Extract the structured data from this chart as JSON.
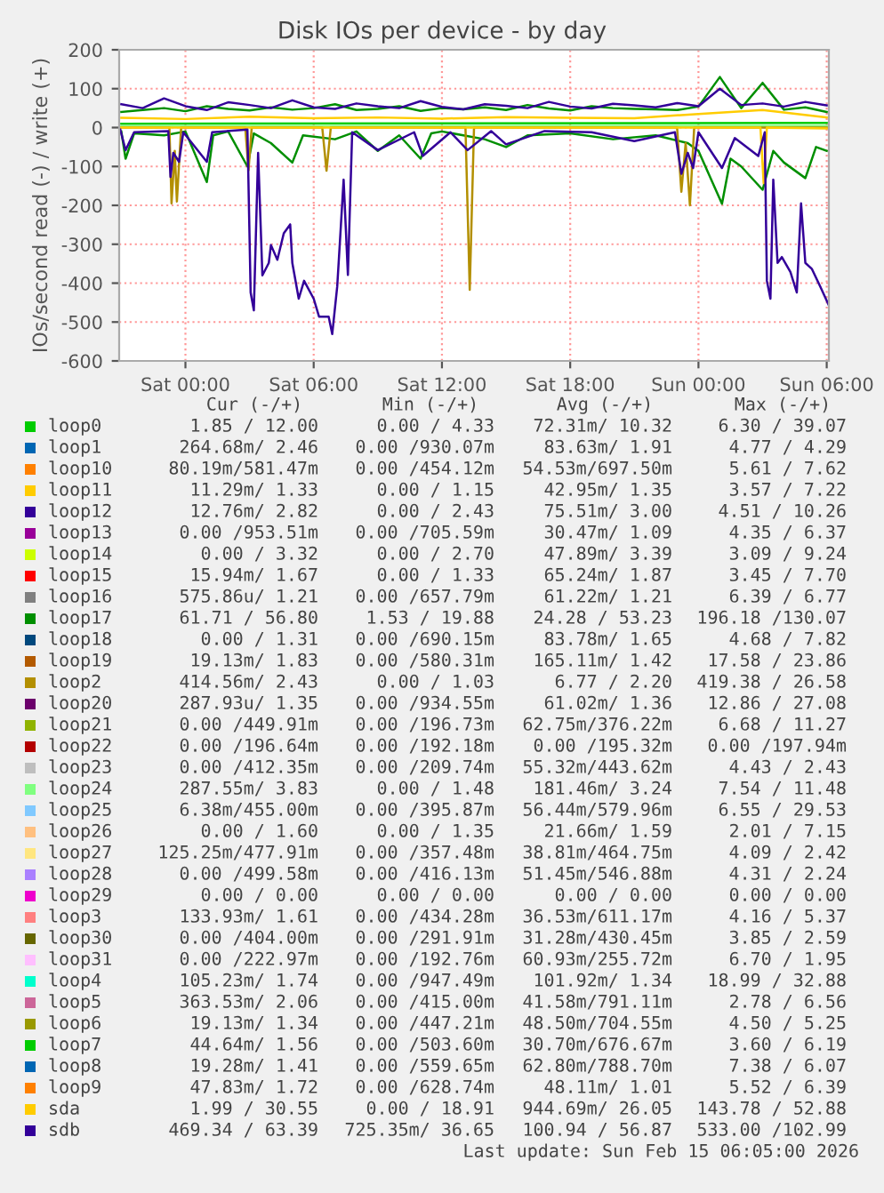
{
  "chart_data": {
    "type": "line",
    "title": "Disk IOs per device - by day",
    "ylabel": "IOs/second read (-) / write (+)",
    "xlim": [
      "2026-02-13T20:54",
      "2026-02-15T06:06"
    ],
    "xticks": [
      {
        "value": "2026-02-14T00:00",
        "label": "Sat 00:00"
      },
      {
        "value": "2026-02-14T06:00",
        "label": "Sat 06:00"
      },
      {
        "value": "2026-02-14T12:00",
        "label": "Sat 12:00"
      },
      {
        "value": "2026-02-14T18:00",
        "label": "Sat 18:00"
      },
      {
        "value": "2026-02-15T00:00",
        "label": "Sun 00:00"
      },
      {
        "value": "2026-02-15T06:00",
        "label": "Sun 06:00"
      }
    ],
    "ylim": [
      -600,
      200
    ],
    "yticks": [
      -600,
      -500,
      -400,
      -300,
      -200,
      -100,
      0,
      100,
      200
    ],
    "grid": true,
    "legend": "bottom",
    "series": [
      {
        "name": "loop0",
        "color": "#00cc00",
        "x": [
          "2026-02-13T21:00",
          "2026-02-15T06:00"
        ],
        "values": [
          10,
          12
        ]
      },
      {
        "name": "loop1",
        "color": "#0066b3"
      },
      {
        "name": "loop10",
        "color": "#ff8000"
      },
      {
        "name": "loop11",
        "color": "#ffcc00"
      },
      {
        "name": "loop12",
        "color": "#330099"
      },
      {
        "name": "loop13",
        "color": "#990099"
      },
      {
        "name": "loop14",
        "color": "#ccff00"
      },
      {
        "name": "loop15",
        "color": "#ff0000"
      },
      {
        "name": "loop16",
        "color": "#808080"
      },
      {
        "name": "loop17",
        "color": "#008f00",
        "x": [
          "2026-02-13T21:00",
          "2026-02-13T22:00",
          "2026-02-13T23:00",
          "2026-02-14T00:00",
          "2026-02-14T01:00",
          "2026-02-14T02:00",
          "2026-02-14T03:00",
          "2026-02-14T04:00",
          "2026-02-14T05:00",
          "2026-02-14T06:00",
          "2026-02-14T07:00",
          "2026-02-14T08:00",
          "2026-02-14T09:00",
          "2026-02-14T10:00",
          "2026-02-14T11:00",
          "2026-02-14T12:00",
          "2026-02-14T13:00",
          "2026-02-14T14:00",
          "2026-02-14T15:00",
          "2026-02-14T16:00",
          "2026-02-14T17:00",
          "2026-02-14T18:00",
          "2026-02-14T19:00",
          "2026-02-14T20:00",
          "2026-02-14T21:00",
          "2026-02-14T22:00",
          "2026-02-14T23:00",
          "2026-02-15T00:00",
          "2026-02-15T01:00",
          "2026-02-15T02:00",
          "2026-02-15T03:00",
          "2026-02-15T04:00",
          "2026-02-15T05:00",
          "2026-02-15T06:00"
        ],
        "values": [
          40,
          45,
          50,
          42,
          55,
          48,
          44,
          52,
          46,
          50,
          60,
          45,
          48,
          55,
          43,
          50,
          47,
          52,
          45,
          58,
          49,
          44,
          55,
          50,
          48,
          47,
          45,
          54,
          130,
          50,
          115,
          46,
          52,
          40
        ]
      },
      {
        "name": "loop18",
        "color": "#00487d"
      },
      {
        "name": "loop19",
        "color": "#b35a00"
      },
      {
        "name": "loop2",
        "color": "#b38f00"
      },
      {
        "name": "loop20",
        "color": "#6b006b"
      },
      {
        "name": "loop21",
        "color": "#8fb300"
      },
      {
        "name": "loop22",
        "color": "#b30000"
      },
      {
        "name": "loop23",
        "color": "#bebebe"
      },
      {
        "name": "loop24",
        "color": "#80ff80",
        "x": [
          "2026-02-13T21:00",
          "2026-02-15T06:00"
        ],
        "values": [
          3,
          4
        ]
      },
      {
        "name": "loop25",
        "color": "#80c9ff"
      },
      {
        "name": "loop26",
        "color": "#ffc080"
      },
      {
        "name": "loop27",
        "color": "#ffe680"
      },
      {
        "name": "loop28",
        "color": "#aa80ff"
      },
      {
        "name": "loop29",
        "color": "#ee00cc"
      },
      {
        "name": "loop3",
        "color": "#ff8080"
      },
      {
        "name": "loop30",
        "color": "#666600"
      },
      {
        "name": "loop31",
        "color": "#ffbfff"
      },
      {
        "name": "loop4",
        "color": "#00ffcc"
      },
      {
        "name": "loop5",
        "color": "#cc6699"
      },
      {
        "name": "loop6",
        "color": "#999900"
      },
      {
        "name": "loop7",
        "color": "#00cc00"
      },
      {
        "name": "loop8",
        "color": "#0066b3"
      },
      {
        "name": "loop9",
        "color": "#ff8000"
      },
      {
        "name": "sda",
        "color": "#ffcc00",
        "x": [
          "2026-02-13T21:00",
          "2026-02-14T00:00",
          "2026-02-14T03:00",
          "2026-02-14T06:00",
          "2026-02-14T09:00",
          "2026-02-14T12:00",
          "2026-02-14T15:00",
          "2026-02-14T18:00",
          "2026-02-14T21:00",
          "2026-02-15T00:00",
          "2026-02-15T03:00",
          "2026-02-15T06:00"
        ],
        "values": [
          25,
          22,
          28,
          24,
          26,
          23,
          27,
          25,
          24,
          35,
          45,
          26
        ]
      },
      {
        "name": "sdb",
        "color": "#330099",
        "x": [
          "2026-02-13T21:00",
          "2026-02-13T22:00",
          "2026-02-13T23:00",
          "2026-02-14T00:00",
          "2026-02-14T01:00",
          "2026-02-14T02:00",
          "2026-02-14T03:00",
          "2026-02-14T04:00",
          "2026-02-14T05:00",
          "2026-02-14T06:00",
          "2026-02-14T07:00",
          "2026-02-14T08:00",
          "2026-02-14T09:00",
          "2026-02-14T10:00",
          "2026-02-14T11:00",
          "2026-02-14T12:00",
          "2026-02-14T13:00",
          "2026-02-14T14:00",
          "2026-02-14T15:00",
          "2026-02-14T16:00",
          "2026-02-14T17:00",
          "2026-02-14T18:00",
          "2026-02-14T19:00",
          "2026-02-14T20:00",
          "2026-02-14T21:00",
          "2026-02-14T22:00",
          "2026-02-14T23:00",
          "2026-02-15T00:00",
          "2026-02-15T01:00",
          "2026-02-15T02:00",
          "2026-02-15T03:00",
          "2026-02-15T04:00",
          "2026-02-15T05:00",
          "2026-02-15T06:00"
        ],
        "values": [
          60,
          50,
          75,
          55,
          45,
          65,
          58,
          50,
          70,
          52,
          48,
          62,
          55,
          50,
          68,
          53,
          47,
          60,
          56,
          50,
          66,
          54,
          49,
          61,
          57,
          52,
          63,
          55,
          100,
          58,
          62,
          54,
          66,
          57
        ]
      },
      {
        "color": "#008f00",
        "x": [
          "2026-02-13T21:00",
          "2026-02-13T21:12",
          "2026-02-13T21:36",
          "2026-02-13T23:00",
          "2026-02-14T00:00",
          "2026-02-14T01:00",
          "2026-02-14T01:18",
          "2026-02-14T02:00",
          "2026-02-14T02:54",
          "2026-02-14T03:12",
          "2026-02-14T04:00",
          "2026-02-14T05:00",
          "2026-02-14T05:30",
          "2026-02-14T07:00",
          "2026-02-14T08:00",
          "2026-02-14T09:00",
          "2026-02-14T10:00",
          "2026-02-14T11:00",
          "2026-02-14T11:30",
          "2026-02-14T12:00",
          "2026-02-14T14:00",
          "2026-02-14T15:00",
          "2026-02-14T16:00",
          "2026-02-14T18:00",
          "2026-02-14T20:00",
          "2026-02-14T22:00",
          "2026-02-14T23:30",
          "2026-02-15T00:00",
          "2026-02-15T01:06",
          "2026-02-15T01:30",
          "2026-02-15T02:00",
          "2026-02-15T03:00",
          "2026-02-15T03:30",
          "2026-02-15T04:00",
          "2026-02-15T05:00",
          "2026-02-15T05:30",
          "2026-02-15T06:00"
        ],
        "values": [
          -10,
          -80,
          -15,
          -20,
          -10,
          -140,
          -20,
          -10,
          -100,
          -15,
          -40,
          -90,
          -20,
          -30,
          -10,
          -60,
          -20,
          -80,
          -15,
          -10,
          -30,
          -50,
          -20,
          -15,
          -30,
          -20,
          -40,
          -60,
          -196,
          -80,
          -100,
          -160,
          -60,
          -90,
          -130,
          -50,
          -60
        ]
      },
      {
        "color": "#b38f00",
        "x": [
          "2026-02-13T21:00",
          "2026-02-13T23:15",
          "2026-02-13T23:21",
          "2026-02-13T23:30",
          "2026-02-13T23:36",
          "2026-02-13T23:48",
          "2026-02-14T02:48",
          "2026-02-14T02:57",
          "2026-02-14T03:06",
          "2026-02-14T06:24",
          "2026-02-14T06:36",
          "2026-02-14T06:48",
          "2026-02-14T13:06",
          "2026-02-14T13:18",
          "2026-02-14T13:30",
          "2026-02-14T23:00",
          "2026-02-14T23:12",
          "2026-02-14T23:24",
          "2026-02-14T23:36",
          "2026-02-14T23:48",
          "2026-02-15T06:00"
        ],
        "values": [
          0,
          0,
          -195,
          -60,
          -190,
          0,
          0,
          -110,
          0,
          0,
          -111,
          0,
          0,
          -417,
          0,
          0,
          -165,
          -40,
          -200,
          0,
          0
        ]
      },
      {
        "color": "#ffcc00",
        "x": [
          "2026-02-13T21:00",
          "2026-02-15T02:54",
          "2026-02-15T03:03",
          "2026-02-15T03:12",
          "2026-02-15T06:00"
        ],
        "values": [
          0,
          0,
          -143,
          0,
          -2
        ]
      },
      {
        "color": "#330099",
        "x": [
          "2026-02-13T20:57",
          "2026-02-13T21:12",
          "2026-02-13T21:36",
          "2026-02-13T23:12",
          "2026-02-13T23:18",
          "2026-02-13T23:26",
          "2026-02-13T23:42",
          "2026-02-13T23:54",
          "2026-02-14T01:00",
          "2026-02-14T01:15",
          "2026-02-14T02:54",
          "2026-02-14T03:03",
          "2026-02-14T03:12",
          "2026-02-14T03:24",
          "2026-02-14T03:36",
          "2026-02-14T03:54",
          "2026-02-14T04:00",
          "2026-02-14T04:18",
          "2026-02-14T04:36",
          "2026-02-14T04:54",
          "2026-02-14T05:00",
          "2026-02-14T05:18",
          "2026-02-14T05:33",
          "2026-02-14T06:00",
          "2026-02-14T06:15",
          "2026-02-14T06:42",
          "2026-02-14T06:52",
          "2026-02-14T07:06",
          "2026-02-14T07:12",
          "2026-02-14T07:24",
          "2026-02-14T07:36",
          "2026-02-14T07:48",
          "2026-02-14T09:00",
          "2026-02-14T10:42",
          "2026-02-14T11:06",
          "2026-02-14T12:24",
          "2026-02-14T13:12",
          "2026-02-14T14:18",
          "2026-02-14T15:00",
          "2026-02-14T16:48",
          "2026-02-14T19:00",
          "2026-02-14T21:00",
          "2026-02-14T22:54",
          "2026-02-14T23:12",
          "2026-02-14T23:30",
          "2026-02-14T23:45",
          "2026-02-15T00:00",
          "2026-02-15T01:06",
          "2026-02-15T01:42",
          "2026-02-15T02:48",
          "2026-02-15T03:06",
          "2026-02-15T03:12",
          "2026-02-15T03:22",
          "2026-02-15T03:30",
          "2026-02-15T03:42",
          "2026-02-15T03:54",
          "2026-02-15T04:18",
          "2026-02-15T04:36",
          "2026-02-15T04:48",
          "2026-02-15T05:00",
          "2026-02-15T05:18",
          "2026-02-15T05:42",
          "2026-02-15T06:05"
        ],
        "values": [
          -5,
          -58,
          -12,
          -9,
          -127,
          -65,
          -88,
          -12,
          -88,
          -12,
          -5,
          -424,
          -470,
          -65,
          -380,
          -348,
          -302,
          -340,
          -272,
          -249,
          -348,
          -440,
          -394,
          -440,
          -486,
          -486,
          -531,
          -409,
          -318,
          -134,
          -379,
          -12,
          -58,
          -12,
          -73,
          -12,
          -58,
          -9,
          -43,
          -9,
          -12,
          -35,
          -12,
          -119,
          -65,
          -104,
          -12,
          -104,
          -27,
          -73,
          -12,
          -394,
          -440,
          -134,
          -348,
          -333,
          -371,
          -424,
          -195,
          -348,
          -363,
          -409,
          -455
        ]
      }
    ],
    "annotations": [
      "Cur (-/+)",
      "Min (-/+)",
      "Avg (-/+)",
      "Max (-/+)",
      "1.85 / 12.00",
      "0.00 / 4.33",
      "72.31m/ 10.32",
      "6.30 / 39.07",
      "264.68m/ 2.46",
      "0.00 /930.07m",
      "83.63m/ 1.91",
      "4.77 / 4.29",
      "80.19m/581.47m",
      "0.00 /454.12m",
      "54.53m/697.50m",
      "5.61 / 7.62",
      "11.29m/ 1.33",
      "0.00 / 1.15",
      "42.95m/ 1.35",
      "3.57 / 7.22",
      "12.76m/ 2.82",
      "0.00 / 2.43",
      "75.51m/ 3.00",
      "4.51 / 10.26",
      "0.00 /953.51m",
      "0.00 /705.59m",
      "30.47m/ 1.09",
      "4.35 / 6.37",
      "0.00 / 3.32",
      "0.00 / 2.70",
      "47.89m/ 3.39",
      "3.09 / 9.24",
      "15.94m/ 1.67",
      "0.00 / 1.33",
      "65.24m/ 1.87",
      "3.45 / 7.70",
      "575.86u/ 1.21",
      "0.00 /657.79m",
      "61.22m/ 1.21",
      "6.39 / 6.77",
      "61.71 / 56.80",
      "1.53 / 19.88",
      "24.28 / 53.23",
      "196.18 /130.07",
      "0.00 / 1.31",
      "0.00 /690.15m",
      "83.78m/ 1.65",
      "4.68 / 7.82",
      "19.13m/ 1.83",
      "0.00 /580.31m",
      "165.11m/ 1.42",
      "17.58 / 23.86",
      "414.56m/ 2.43",
      "0.00 / 1.03",
      "6.77 / 2.20",
      "419.38 / 26.58",
      "287.93u/ 1.35",
      "0.00 /934.55m",
      "61.02m/ 1.36",
      "12.86 / 27.08",
      "0.00 /449.91m",
      "0.00 /196.73m",
      "62.75m/376.22m",
      "6.68 / 11.27",
      "0.00 /196.64m",
      "0.00 /192.18m",
      "0.00 /195.32m",
      "0.00 /197.94m",
      "0.00 /412.35m",
      "0.00 /209.74m",
      "55.32m/443.62m",
      "4.43 / 2.43",
      "287.55m/ 3.83",
      "0.00 / 1.48",
      "181.46m/ 3.24",
      "7.54 / 11.48",
      "6.38m/455.00m",
      "0.00 /395.87m",
      "56.44m/579.96m",
      "6.55 / 29.53",
      "0.00 / 1.60",
      "0.00 / 1.35",
      "21.66m/ 1.59",
      "2.01 / 7.15",
      "125.25m/477.91m",
      "0.00 /357.48m",
      "38.81m/464.75m",
      "4.09 / 2.42",
      "0.00 /499.58m",
      "0.00 /416.13m",
      "51.45m/546.88m",
      "4.31 / 2.24",
      "0.00 / 0.00",
      "0.00 / 0.00",
      "0.00 / 0.00",
      "0.00 / 0.00",
      "133.93m/ 1.61",
      "0.00 /434.28m",
      "36.53m/611.17m",
      "4.16 / 5.37",
      "0.00 /404.00m",
      "0.00 /291.91m",
      "31.28m/430.45m",
      "3.85 / 2.59",
      "0.00 /222.97m",
      "0.00 /192.76m",
      "60.93m/255.72m",
      "6.70 / 1.95",
      "105.23m/ 1.74",
      "0.00 /947.49m",
      "101.92m/ 1.34",
      "18.99 / 32.88",
      "363.53m/ 2.06",
      "0.00 /415.00m",
      "41.58m/791.11m",
      "2.78 / 6.56",
      "19.13m/ 1.34",
      "0.00 /447.21m",
      "48.50m/704.55m",
      "4.50 / 5.25",
      "44.64m/ 1.56",
      "0.00 /503.60m",
      "30.70m/676.67m",
      "3.60 / 6.19",
      "19.28m/ 1.41",
      "0.00 /559.65m",
      "62.80m/788.70m",
      "7.38 / 6.07",
      "47.83m/ 1.72",
      "0.00 /628.74m",
      "48.11m/ 1.01",
      "5.52 / 6.39",
      "1.99 / 30.55",
      "0.00 / 18.91",
      "944.69m/ 26.05",
      "143.78 / 52.88",
      "469.34 / 63.39",
      "725.35m/ 36.65",
      "100.94 / 56.87",
      "533.00 /102.99",
      "Last update: Sun Feb 15 06:05:00 2026"
    ]
  }
}
